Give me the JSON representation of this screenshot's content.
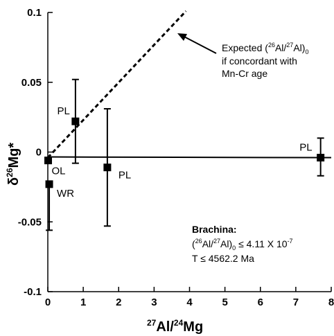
{
  "chart_data": {
    "type": "scatter",
    "x": {
      "min": 0,
      "max": 8,
      "ticks": [
        "0",
        "1",
        "2",
        "3",
        "4",
        "5",
        "6",
        "7",
        "8"
      ]
    },
    "y": {
      "min": -0.1,
      "max": 0.1,
      "ticks": [
        "0.1",
        "0.05",
        "0",
        "-0.05",
        "-0.1"
      ]
    },
    "xlabel": {
      "sup1": "27",
      "base1": "Al/",
      "sup2": "24",
      "base2": "Mg"
    },
    "ylabel": {
      "pre": "δ",
      "sup": "26",
      "base": "Mg*"
    },
    "points": [
      {
        "label": "OL",
        "x": 0.01,
        "y": -0.006,
        "err_low": -0.006,
        "err_high": -0.006
      },
      {
        "label": "WR",
        "x": 0.04,
        "y": -0.023,
        "err_low": -0.056,
        "err_high": -0.023
      },
      {
        "label": "PL",
        "x": 0.78,
        "y": 0.022,
        "err_low": -0.008,
        "err_high": 0.052
      },
      {
        "label": "PL",
        "x": 1.68,
        "y": -0.011,
        "err_low": -0.053,
        "err_high": 0.031
      },
      {
        "label": "PL",
        "x": 7.7,
        "y": -0.004,
        "err_low": -0.017,
        "err_high": 0.01
      }
    ],
    "fit_line": {
      "x1": 0,
      "y1": -0.0035,
      "x2": 8,
      "y2": -0.004
    },
    "expected_line": {
      "x1": 0,
      "y1": -0.004,
      "x2": 3.9,
      "y2": 0.101
    },
    "annotation": {
      "line1_pre": "Expected (",
      "line1_sup1": "26",
      "line1_mid": "Al/",
      "line1_sup2": "27",
      "line1_post": "Al)",
      "line1_sub": "0",
      "line2": "if concordant with",
      "line3": "Mn-Cr age"
    },
    "result": {
      "title": "Brachina:",
      "line2_pre": "(",
      "line2_sup1": "26",
      "line2_mid": "Al/",
      "line2_sup2": "27",
      "line2_post": "Al)",
      "line2_sub": "0",
      "line2_rest": " ≤ 4.11 X 10",
      "line2_exp": "-7",
      "line3": "T ≤ 4562.2 Ma"
    },
    "colors": {
      "marker": "#000000",
      "line": "#000000"
    }
  }
}
